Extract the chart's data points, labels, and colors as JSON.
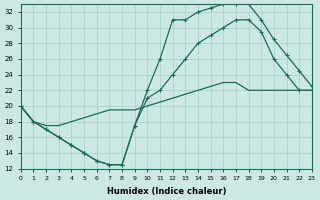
{
  "xlabel": "Humidex (Indice chaleur)",
  "ylabel": "",
  "background_color": "#cce8e4",
  "grid_color": "#aad4cc",
  "line_color": "#1a6b5a",
  "xlim": [
    0,
    23
  ],
  "ylim": [
    12,
    33
  ],
  "yticks": [
    12,
    14,
    16,
    18,
    20,
    22,
    24,
    26,
    28,
    30,
    32
  ],
  "xticks": [
    0,
    1,
    2,
    3,
    4,
    5,
    6,
    7,
    8,
    9,
    10,
    11,
    12,
    13,
    14,
    15,
    16,
    17,
    18,
    19,
    20,
    21,
    22,
    23
  ],
  "line1_x": [
    0,
    1,
    2,
    3,
    4,
    5,
    6,
    7,
    8,
    9,
    10,
    11,
    12,
    13,
    14,
    15,
    16,
    17,
    18,
    19,
    20,
    21,
    22,
    23
  ],
  "line1_y": [
    20,
    18,
    17,
    16,
    15,
    14,
    13,
    12.5,
    12.5,
    17.5,
    22,
    26,
    31,
    31,
    32,
    32.5,
    33,
    33,
    33,
    31,
    28.5,
    26.5,
    24.5,
    22.5
  ],
  "line2_x": [
    0,
    1,
    2,
    3,
    4,
    5,
    6,
    7,
    8,
    9,
    10,
    11,
    12,
    13,
    14,
    15,
    16,
    17,
    18,
    19,
    20,
    21,
    22,
    23
  ],
  "line2_y": [
    20,
    18,
    17,
    16,
    15,
    14,
    13,
    12.5,
    12.5,
    17.5,
    21,
    22,
    24,
    26,
    28,
    29,
    30,
    31,
    31,
    29.5,
    26,
    24,
    22,
    22
  ],
  "line3_x": [
    0,
    1,
    2,
    3,
    4,
    5,
    6,
    7,
    8,
    9,
    10,
    11,
    12,
    13,
    14,
    15,
    16,
    17,
    18,
    19,
    20,
    21,
    22,
    23
  ],
  "line3_y": [
    20,
    18,
    17.5,
    17.5,
    18,
    18.5,
    19,
    19.5,
    19.5,
    19.5,
    20,
    20.5,
    21,
    21.5,
    22,
    22.5,
    23,
    23,
    22,
    22,
    22,
    22,
    22,
    22
  ]
}
